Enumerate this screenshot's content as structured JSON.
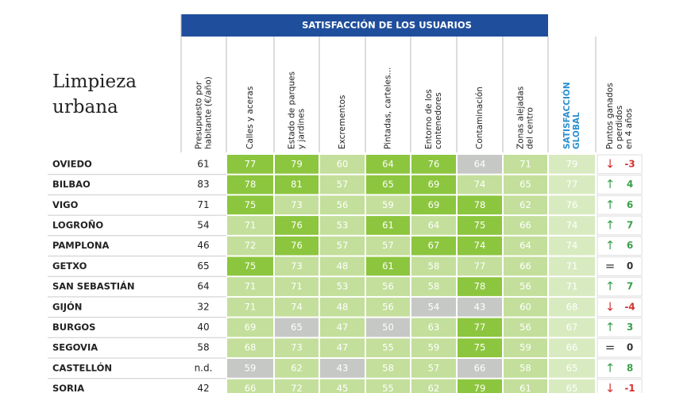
{
  "title": [
    "Limpieza",
    "urbana"
  ],
  "group_header": "SATISFACCIÓN DE LOS USUARIOS",
  "columns": [
    [
      "Presupuesto por",
      "habitante (€/año)"
    ],
    [
      "Calles y aceras"
    ],
    [
      "Estado de parques",
      "y jardines"
    ],
    [
      "Excrementos"
    ],
    [
      "Pintadas, carteles..."
    ],
    [
      "Entorno de los",
      "contenedores"
    ],
    [
      "Contaminación"
    ],
    [
      "Zonas alejadas",
      "del centro"
    ],
    [
      "SATISFACCIÓN",
      "GLOBAL"
    ],
    [
      "Puntos ganados",
      "o perdidos",
      "en 4 años"
    ]
  ],
  "palette": {
    "D": "#8cc63e",
    "L": "#c3df9b",
    "G": "#c6c8c6",
    "global": "#d8ebc0",
    "header": "#1f4e9c",
    "global_text": "#2a8fd0"
  },
  "trend_colors": {
    "↑": "#3a9f4a",
    "↓": "#d6312f",
    "=": "#333333"
  },
  "rows": [
    {
      "city": "OVIEDO",
      "budget": 61,
      "values": [
        77,
        79,
        60,
        64,
        76,
        64,
        71
      ],
      "shades": [
        "D",
        "D",
        "L",
        "D",
        "D",
        "G",
        "L"
      ],
      "global": 79,
      "trend": "↓",
      "points": -3
    },
    {
      "city": "BILBAO",
      "budget": 83,
      "values": [
        78,
        81,
        57,
        65,
        69,
        74,
        65
      ],
      "shades": [
        "D",
        "D",
        "L",
        "D",
        "D",
        "L",
        "L"
      ],
      "global": 77,
      "trend": "↑",
      "points": 4
    },
    {
      "city": "VIGO",
      "budget": 71,
      "values": [
        75,
        73,
        56,
        59,
        69,
        78,
        62
      ],
      "shades": [
        "D",
        "L",
        "L",
        "L",
        "D",
        "D",
        "L"
      ],
      "global": 76,
      "trend": "↑",
      "points": 6
    },
    {
      "city": "LOGROÑO",
      "budget": 54,
      "values": [
        71,
        76,
        53,
        61,
        64,
        75,
        66
      ],
      "shades": [
        "L",
        "D",
        "L",
        "D",
        "L",
        "D",
        "L"
      ],
      "global": 74,
      "trend": "↑",
      "points": 7
    },
    {
      "city": "PAMPLONA",
      "budget": 46,
      "values": [
        72,
        76,
        57,
        57,
        67,
        74,
        64
      ],
      "shades": [
        "L",
        "D",
        "L",
        "L",
        "D",
        "D",
        "L"
      ],
      "global": 74,
      "trend": "↑",
      "points": 6
    },
    {
      "city": "GETXO",
      "budget": 65,
      "values": [
        75,
        73,
        48,
        61,
        58,
        77,
        66
      ],
      "shades": [
        "D",
        "L",
        "L",
        "D",
        "L",
        "L",
        "L"
      ],
      "global": 71,
      "trend": "=",
      "points": 0
    },
    {
      "city": "SAN SEBASTIÁN",
      "budget": 64,
      "values": [
        71,
        71,
        53,
        56,
        58,
        78,
        56
      ],
      "shades": [
        "L",
        "L",
        "L",
        "L",
        "L",
        "D",
        "L"
      ],
      "global": 71,
      "trend": "↑",
      "points": 7
    },
    {
      "city": "GIJÓN",
      "budget": 32,
      "values": [
        71,
        74,
        48,
        56,
        54,
        43,
        60
      ],
      "shades": [
        "L",
        "L",
        "L",
        "L",
        "G",
        "G",
        "L"
      ],
      "global": 68,
      "trend": "↓",
      "points": -4
    },
    {
      "city": "BURGOS",
      "budget": 40,
      "values": [
        69,
        65,
        47,
        50,
        63,
        77,
        56
      ],
      "shades": [
        "L",
        "G",
        "L",
        "G",
        "L",
        "D",
        "L"
      ],
      "global": 67,
      "trend": "↑",
      "points": 3
    },
    {
      "city": "SEGOVIA",
      "budget": 58,
      "values": [
        68,
        73,
        47,
        55,
        59,
        75,
        59
      ],
      "shades": [
        "L",
        "L",
        "L",
        "L",
        "L",
        "D",
        "L"
      ],
      "global": 66,
      "trend": "=",
      "points": 0
    },
    {
      "city": "CASTELLÓN",
      "budget": "n.d.",
      "values": [
        59,
        62,
        43,
        58,
        57,
        66,
        58
      ],
      "shades": [
        "G",
        "L",
        "G",
        "L",
        "L",
        "G",
        "L"
      ],
      "global": 65,
      "trend": "↑",
      "points": 8
    },
    {
      "city": "SORIA",
      "budget": 42,
      "values": [
        66,
        72,
        45,
        55,
        62,
        79,
        61
      ],
      "shades": [
        "L",
        "L",
        "L",
        "L",
        "L",
        "D",
        "L"
      ],
      "global": 65,
      "trend": "↓",
      "points": -1
    }
  ]
}
